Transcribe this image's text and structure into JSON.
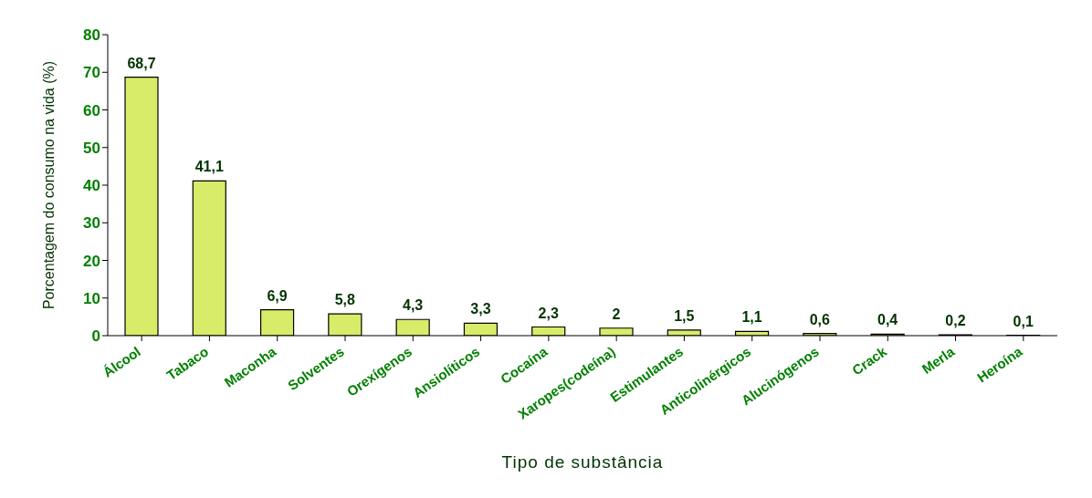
{
  "chart_data": {
    "type": "bar",
    "xlabel": "Tipo de substância",
    "ylabel": "Porcentagem do consumo na vida (%)",
    "categories": [
      "Álcool",
      "Tabaco",
      "Maconha",
      "Solventes",
      "Orexígenos",
      "Ansiolíticos",
      "Cocaína",
      "Xaropes(codeína)",
      "Estimulantes",
      "Anticolinérgicos",
      "Alucinógenos",
      "Crack",
      "Merla",
      "Heroína"
    ],
    "values": [
      68.7,
      41.1,
      6.9,
      5.8,
      4.3,
      3.3,
      2.3,
      2,
      1.5,
      1.1,
      0.6,
      0.4,
      0.2,
      0.1
    ],
    "value_labels": [
      "68,7",
      "41,1",
      "6,9",
      "5,8",
      "4,3",
      "3,3",
      "2,3",
      "2",
      "1,5",
      "1,1",
      "0,6",
      "0,4",
      "0,2",
      "0,1"
    ],
    "color": "#d9ec6a",
    "ylim": [
      0,
      80
    ],
    "yticks": [
      0,
      10,
      20,
      30,
      40,
      50,
      60,
      70,
      80
    ],
    "grid": false
  }
}
